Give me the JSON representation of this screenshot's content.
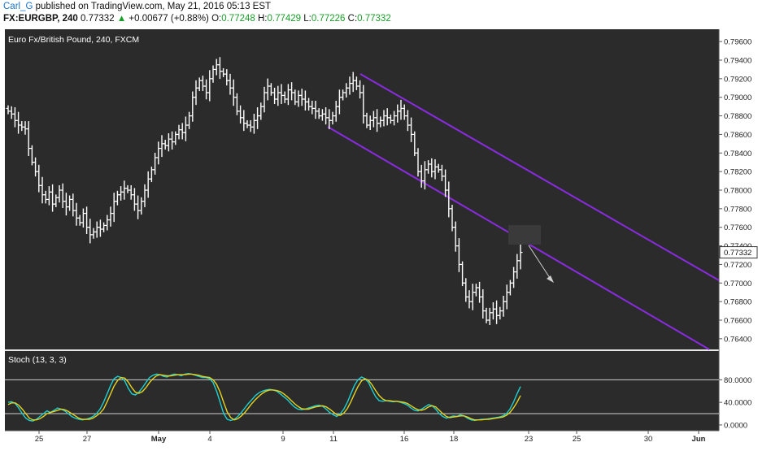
{
  "header": {
    "author": "Carl_G",
    "published": "published on TradingView.com, May 21, 2016 05:13 EST",
    "symbol": "FX:EURGBP, 240",
    "last": "0.77332",
    "change": "+0.00677 (+0.88%)",
    "open_label": "O:",
    "open": "0.77248",
    "high_label": "H:",
    "high": "0.77429",
    "low_label": "L:",
    "low": "0.77226",
    "close_label": "C:",
    "close": "0.77332"
  },
  "colors": {
    "background": "#2b2b2b",
    "candle": "#ffffff",
    "channel": "#8a2be2",
    "stoch_k": "#1fd0d0",
    "stoch_d": "#e6d21e",
    "price_tag": "#ffffff"
  },
  "chart_data": [
    {
      "type": "ohlc",
      "title": "Euro Fx/British Pound, 240, FXCM",
      "y_ticks": [
        "0.79600",
        "0.79400",
        "0.79200",
        "0.79000",
        "0.78800",
        "0.78600",
        "0.78400",
        "0.78200",
        "0.78000",
        "0.77800",
        "0.77600",
        "0.77400",
        "0.77200",
        "0.77000",
        "0.76800",
        "0.76600",
        "0.76400"
      ],
      "ylim": [
        0.7632,
        0.7968
      ],
      "x_ticks": [
        "25",
        "27",
        "May",
        "4",
        "9",
        "11",
        "16",
        "18",
        "23",
        "25",
        "30",
        "Jun"
      ],
      "last_price_label": "0.77332",
      "grid": false,
      "closes": [
        0.7885,
        0.7882,
        0.7875,
        0.787,
        0.7868,
        0.7866,
        0.7845,
        0.783,
        0.782,
        0.7805,
        0.7795,
        0.779,
        0.7798,
        0.7785,
        0.7792,
        0.78,
        0.7788,
        0.7782,
        0.779,
        0.7778,
        0.777,
        0.7765,
        0.7775,
        0.776,
        0.7752,
        0.7755,
        0.776,
        0.7758,
        0.7762,
        0.7768,
        0.7775,
        0.7788,
        0.7795,
        0.7798,
        0.7802,
        0.78,
        0.7795,
        0.7785,
        0.7778,
        0.7788,
        0.78,
        0.7812,
        0.7822,
        0.7835,
        0.7845,
        0.785,
        0.7848,
        0.7855,
        0.7852,
        0.786,
        0.7865,
        0.7862,
        0.787,
        0.788,
        0.79,
        0.791,
        0.7918,
        0.7912,
        0.7905,
        0.792,
        0.793,
        0.7935,
        0.7928,
        0.7925,
        0.7918,
        0.791,
        0.79,
        0.7885,
        0.7878,
        0.7872,
        0.787,
        0.7868,
        0.7875,
        0.788,
        0.789,
        0.7905,
        0.7912,
        0.7905,
        0.7898,
        0.7905,
        0.7902,
        0.7898,
        0.7908,
        0.7905,
        0.7895,
        0.7902,
        0.7898,
        0.7895,
        0.789,
        0.7888,
        0.7885,
        0.788,
        0.7882,
        0.7878,
        0.7875,
        0.788,
        0.789,
        0.79,
        0.7905,
        0.791,
        0.7915,
        0.7918,
        0.7912,
        0.7905,
        0.788,
        0.787,
        0.7875,
        0.7878,
        0.7872,
        0.7875,
        0.788,
        0.7878,
        0.7875,
        0.788,
        0.7885,
        0.7888,
        0.788,
        0.787,
        0.786,
        0.784,
        0.782,
        0.781,
        0.7822,
        0.7828,
        0.782,
        0.7825,
        0.7822,
        0.7815,
        0.78,
        0.778,
        0.776,
        0.774,
        0.772,
        0.77,
        0.7685,
        0.768,
        0.769,
        0.7695,
        0.7685,
        0.767,
        0.766,
        0.7668,
        0.7672,
        0.7665,
        0.767,
        0.768,
        0.769,
        0.77,
        0.7712,
        0.7724,
        0.7733
      ]
    },
    {
      "type": "line",
      "title": "Stoch (13, 3, 3)",
      "y_ticks": [
        "80.0000",
        "40.0000",
        "0.0000"
      ],
      "ylim": [
        -3,
        105
      ],
      "reference_lines": [
        80,
        20
      ],
      "series": [
        {
          "values": [
            40,
            41,
            38,
            30,
            20,
            12,
            8,
            7,
            10,
            15,
            20,
            25,
            22,
            26,
            30,
            28,
            25,
            20,
            15,
            12,
            10,
            9,
            10,
            12,
            15,
            20,
            28,
            40,
            55,
            70,
            82,
            86,
            84,
            78,
            65,
            55,
            53,
            58,
            66,
            75,
            84,
            88,
            90,
            89,
            86,
            85,
            88,
            90,
            89,
            87,
            90,
            91,
            90,
            88,
            86,
            84,
            84,
            82,
            75,
            60,
            40,
            20,
            10,
            8,
            10,
            15,
            22,
            30,
            38,
            45,
            52,
            57,
            60,
            62,
            63,
            62,
            60,
            55,
            50,
            45,
            38,
            32,
            28,
            27,
            28,
            30,
            32,
            34,
            35,
            33,
            28,
            22,
            18,
            15,
            20,
            28,
            40,
            55,
            70,
            80,
            85,
            82,
            75,
            62,
            50,
            43,
            42,
            43,
            42,
            41,
            42,
            40,
            38,
            35,
            30,
            26,
            25,
            28,
            32,
            36,
            34,
            28,
            20,
            15,
            12,
            14,
            16,
            15,
            18,
            16,
            12,
            9,
            8,
            9,
            10,
            10,
            11,
            12,
            13,
            14,
            16,
            20,
            28,
            40,
            55,
            68
          ]
        },
        {
          "values": [
            36,
            39,
            39,
            35,
            28,
            20,
            12,
            9,
            9,
            11,
            15,
            20,
            22,
            24,
            26,
            28,
            27,
            24,
            20,
            16,
            12,
            10,
            10,
            10,
            12,
            16,
            21,
            28,
            41,
            55,
            69,
            79,
            84,
            83,
            76,
            66,
            58,
            56,
            59,
            66,
            75,
            82,
            87,
            89,
            88,
            87,
            87,
            88,
            89,
            89,
            89,
            90,
            90,
            89,
            88,
            86,
            85,
            84,
            80,
            72,
            58,
            40,
            23,
            13,
            9,
            11,
            16,
            22,
            30,
            38,
            45,
            51,
            56,
            60,
            62,
            62,
            61,
            59,
            55,
            50,
            44,
            38,
            33,
            29,
            28,
            28,
            30,
            32,
            33,
            34,
            32,
            28,
            23,
            18,
            17,
            21,
            29,
            41,
            55,
            68,
            78,
            82,
            79,
            71,
            61,
            52,
            46,
            43,
            43,
            42,
            42,
            41,
            40,
            38,
            34,
            30,
            27,
            26,
            28,
            32,
            34,
            32,
            26,
            20,
            15,
            13,
            14,
            15,
            16,
            16,
            14,
            11,
            9,
            9,
            9,
            10,
            10,
            11,
            12,
            13,
            14,
            17,
            22,
            30,
            40,
            52
          ]
        }
      ]
    }
  ]
}
